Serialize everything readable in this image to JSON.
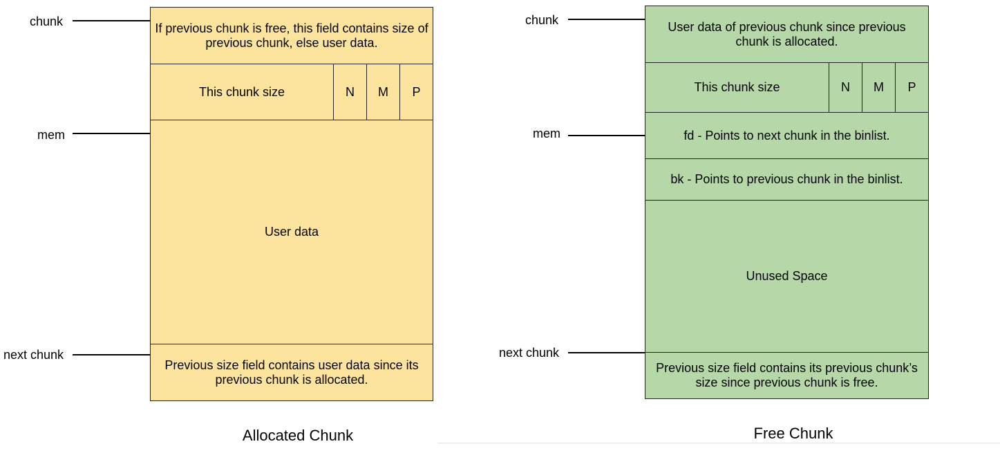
{
  "allocated": {
    "caption": "Allocated Chunk",
    "pointers": {
      "chunk": "chunk",
      "mem": "mem",
      "next_chunk": "next chunk"
    },
    "prev_size_text": "If previous chunk is free, this field contains size of previous chunk, else user data.",
    "size_text": "This chunk size",
    "flags": [
      "N",
      "M",
      "P"
    ],
    "user_data_text": "User data",
    "next_prev_size_text": "Previous size field contains user data since its previous chunk is allocated.",
    "fill_color": "#fde49e"
  },
  "free": {
    "caption": "Free Chunk",
    "pointers": {
      "chunk": "chunk",
      "mem": "mem",
      "next_chunk": "next chunk"
    },
    "prev_size_text": "User data of previous chunk since previous chunk is allocated.",
    "size_text": "This chunk size",
    "flags": [
      "N",
      "M",
      "P"
    ],
    "fd_text": "fd - Points to next chunk in the binlist.",
    "bk_text": "bk - Points to previous chunk in the binlist.",
    "unused_text": "Unused Space",
    "next_prev_size_text": "Previous size field contains its previous chunk’s size since previous chunk is free.",
    "fill_color": "#b6d7a8"
  }
}
